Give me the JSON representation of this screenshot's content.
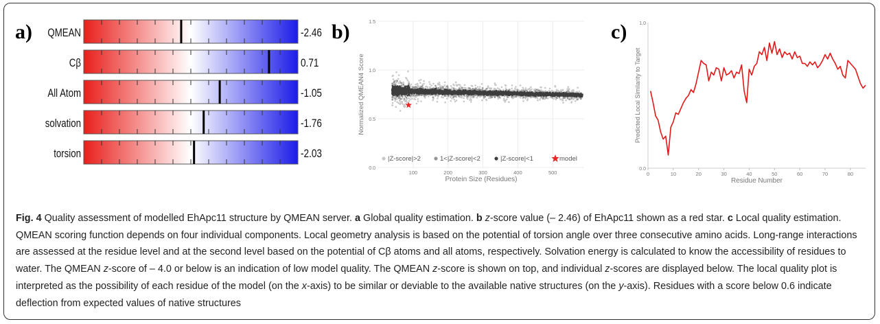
{
  "panels": {
    "a": "a)",
    "b": "b)",
    "c": "c)"
  },
  "chart_data": [
    {
      "type": "bar",
      "panel": "a",
      "categories": [
        "QMEAN",
        "Cβ",
        "All Atom",
        "solvation",
        "torsion"
      ],
      "values": [
        -2.46,
        0.71,
        -1.05,
        -1.76,
        -2.03
      ],
      "value_labels": [
        "-2.46",
        "0.71",
        "-1.05",
        "-1.76",
        "-2.03"
      ],
      "marker_positions": [
        0.455,
        0.865,
        0.635,
        0.56,
        0.515
      ],
      "colors": {
        "low": "#e8201c",
        "mid": "#ffffff",
        "high": "#1c1ce8",
        "marker": "#000000"
      }
    },
    {
      "type": "scatter",
      "panel": "b",
      "xlabel": "Protein Size (Residues)",
      "ylabel": "Normalized QMEAN4 Score",
      "xlim": [
        0,
        590
      ],
      "ylim": [
        0,
        1.5
      ],
      "xticks": [
        100,
        200,
        300,
        400,
        500
      ],
      "yticks": [
        0.0,
        0.5,
        1.0,
        1.5
      ],
      "ytick_labels": [
        "0.0",
        "0.5",
        "1.0",
        "1.5"
      ],
      "legend": [
        "|Z-score|>2",
        "1<|Z-score|<2",
        "|Z-score|<1",
        "model"
      ],
      "model_point": {
        "x": 87,
        "y": 0.64
      },
      "colors": {
        "outer": "#c8c8c8",
        "mid": "#969696",
        "inner": "#3d3d3d",
        "model": "#e62a2a"
      }
    },
    {
      "type": "line",
      "panel": "c",
      "xlabel": "Residue Number",
      "ylabel": "Predicted Local Similarity to Target",
      "xlim": [
        0,
        86
      ],
      "ylim": [
        0,
        1
      ],
      "xticks": [
        0,
        10,
        20,
        30,
        40,
        50,
        60,
        70,
        80
      ],
      "yticks": [
        0.0,
        1.0
      ],
      "ytick_labels": [
        "0.0",
        "1.0"
      ],
      "x": [
        1,
        2,
        3,
        4,
        5,
        6,
        7,
        8,
        9,
        10,
        11,
        12,
        13,
        14,
        15,
        16,
        17,
        18,
        19,
        20,
        21,
        22,
        23,
        24,
        25,
        26,
        27,
        28,
        29,
        30,
        31,
        32,
        33,
        34,
        35,
        36,
        37,
        38,
        39,
        40,
        41,
        42,
        43,
        44,
        45,
        46,
        47,
        48,
        49,
        50,
        51,
        52,
        53,
        54,
        55,
        56,
        57,
        58,
        59,
        60,
        61,
        62,
        63,
        64,
        65,
        66,
        67,
        68,
        69,
        70,
        71,
        72,
        73,
        74,
        75,
        76,
        77,
        78,
        79,
        80,
        81,
        82,
        83,
        84,
        85,
        86
      ],
      "values": [
        0.53,
        0.45,
        0.36,
        0.33,
        0.25,
        0.2,
        0.22,
        0.09,
        0.28,
        0.32,
        0.38,
        0.37,
        0.41,
        0.45,
        0.48,
        0.5,
        0.54,
        0.52,
        0.58,
        0.66,
        0.74,
        0.72,
        0.71,
        0.6,
        0.66,
        0.64,
        0.69,
        0.68,
        0.6,
        0.69,
        0.64,
        0.65,
        0.67,
        0.62,
        0.66,
        0.65,
        0.71,
        0.53,
        0.45,
        0.68,
        0.64,
        0.7,
        0.72,
        0.8,
        0.78,
        0.83,
        0.74,
        0.86,
        0.79,
        0.87,
        0.78,
        0.82,
        0.76,
        0.8,
        0.78,
        0.79,
        0.75,
        0.8,
        0.76,
        0.77,
        0.72,
        0.72,
        0.7,
        0.73,
        0.71,
        0.73,
        0.69,
        0.71,
        0.74,
        0.78,
        0.75,
        0.79,
        0.75,
        0.72,
        0.68,
        0.7,
        0.64,
        0.62,
        0.74,
        0.72,
        0.7,
        0.68,
        0.63,
        0.58,
        0.55,
        0.57
      ],
      "colors": {
        "line": "#e01818"
      }
    }
  ],
  "caption": {
    "fig_label": "Fig. 4",
    "intro": " Quality assessment of modelled EhApc11 structure by QMEAN server. ",
    "a_label": "a",
    "a_text": " Global quality estimation. ",
    "b_label": "b",
    "z_word": "z",
    "b_text": "-score value (– 2.46) of EhApc11 shown as a red star. ",
    "c_label": "c",
    "c_text": " Local quality estimation. QMEAN scoring function depends on four individual components. Local geometry analysis is based on the potential of torsion angle over three consecutive amino acids. Long-range interactions are assessed at the residue level and at the second level based on the potential of Cβ atoms and all atoms, respectively. Solvation energy is calculated to know the accessibility of residues to water. The QMEAN ",
    "t2": "-score of – 4.0 or below is an indication of low model quality. The QMEAN ",
    "t3": "-score is shown on top, and individual ",
    "t4": "-scores are displayed below. The local quality plot is interpreted as the possibility of each residue of the model (on the ",
    "x_word": "x",
    "t5": "-axis) to be similar or deviable to the available native structures (on the ",
    "y_word": "y",
    "t6": "-axis). Residues with a score below 0.6 indicate deflection from expected values of native structures"
  }
}
